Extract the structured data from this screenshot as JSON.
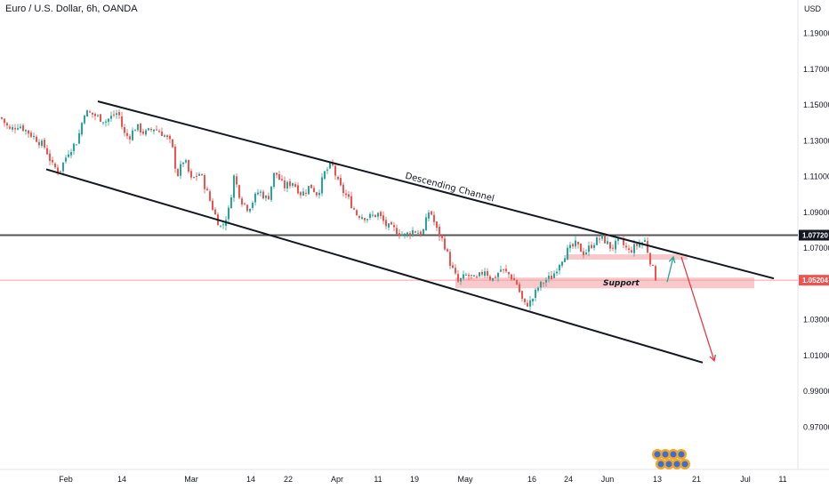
{
  "header": {
    "title": "Euro / U.S. Dollar, 6h, OANDA",
    "currency": "USD"
  },
  "colors": {
    "up": "#26a69a",
    "down": "#ef5350",
    "line": "#131722",
    "resistance": "#545454",
    "zone": "#f7c9cb",
    "price_line": "#f7a0a4",
    "arrow_up": "#26a69a",
    "arrow_down": "#e03c4a",
    "badge_bg": "#f5a623",
    "badge_icon": "#3b6fd8"
  },
  "chart_data": {
    "type": "candlestick",
    "symbol": "EURUSD",
    "timeframe": "6h",
    "grid": false,
    "ylim": [
      0.955,
      1.205
    ],
    "y_ticks": [
      "1.19000",
      "1.17000",
      "1.15000",
      "1.13000",
      "1.11000",
      "1.09000",
      "1.07000",
      "1.03000",
      "1.01000",
      "0.99000",
      "0.97000"
    ],
    "x_ticks": [
      "Feb",
      "14",
      "Mar",
      "14",
      "22",
      "Apr",
      "11",
      "19",
      "May",
      "16",
      "24",
      "Jun",
      "13",
      "21",
      "Jul",
      "11"
    ],
    "close_path": [
      {
        "x": 0.0,
        "y": 1.143
      },
      {
        "x": 10,
        "y": 1.136
      },
      {
        "x": 20,
        "y": 1.139
      },
      {
        "x": 30,
        "y": 1.135
      },
      {
        "x": 40,
        "y": 1.131
      },
      {
        "x": 50,
        "y": 1.126
      },
      {
        "x": 58,
        "y": 1.116
      },
      {
        "x": 66,
        "y": 1.113
      },
      {
        "x": 76,
        "y": 1.124
      },
      {
        "x": 86,
        "y": 1.13
      },
      {
        "x": 94,
        "y": 1.146
      },
      {
        "x": 102,
        "y": 1.145
      },
      {
        "x": 110,
        "y": 1.143
      },
      {
        "x": 118,
        "y": 1.141
      },
      {
        "x": 126,
        "y": 1.144
      },
      {
        "x": 132,
        "y": 1.146
      },
      {
        "x": 138,
        "y": 1.134
      },
      {
        "x": 144,
        "y": 1.132
      },
      {
        "x": 152,
        "y": 1.138
      },
      {
        "x": 162,
        "y": 1.134
      },
      {
        "x": 172,
        "y": 1.137
      },
      {
        "x": 182,
        "y": 1.134
      },
      {
        "x": 192,
        "y": 1.128
      },
      {
        "x": 198,
        "y": 1.11
      },
      {
        "x": 206,
        "y": 1.12
      },
      {
        "x": 214,
        "y": 1.108
      },
      {
        "x": 224,
        "y": 1.112
      },
      {
        "x": 234,
        "y": 1.098
      },
      {
        "x": 242,
        "y": 1.087
      },
      {
        "x": 248,
        "y": 1.081
      },
      {
        "x": 256,
        "y": 1.091
      },
      {
        "x": 262,
        "y": 1.11
      },
      {
        "x": 270,
        "y": 1.097
      },
      {
        "x": 278,
        "y": 1.092
      },
      {
        "x": 290,
        "y": 1.102
      },
      {
        "x": 300,
        "y": 1.097
      },
      {
        "x": 308,
        "y": 1.113
      },
      {
        "x": 318,
        "y": 1.104
      },
      {
        "x": 328,
        "y": 1.107
      },
      {
        "x": 338,
        "y": 1.1
      },
      {
        "x": 348,
        "y": 1.105
      },
      {
        "x": 356,
        "y": 1.1
      },
      {
        "x": 364,
        "y": 1.112
      },
      {
        "x": 372,
        "y": 1.117
      },
      {
        "x": 380,
        "y": 1.105
      },
      {
        "x": 390,
        "y": 1.098
      },
      {
        "x": 400,
        "y": 1.089
      },
      {
        "x": 412,
        "y": 1.087
      },
      {
        "x": 424,
        "y": 1.089
      },
      {
        "x": 434,
        "y": 1.082
      },
      {
        "x": 444,
        "y": 1.08
      },
      {
        "x": 454,
        "y": 1.077
      },
      {
        "x": 464,
        "y": 1.08
      },
      {
        "x": 474,
        "y": 1.078
      },
      {
        "x": 482,
        "y": 1.092
      },
      {
        "x": 490,
        "y": 1.08
      },
      {
        "x": 498,
        "y": 1.073
      },
      {
        "x": 506,
        "y": 1.06
      },
      {
        "x": 514,
        "y": 1.051
      },
      {
        "x": 524,
        "y": 1.055
      },
      {
        "x": 534,
        "y": 1.052
      },
      {
        "x": 544,
        "y": 1.058
      },
      {
        "x": 552,
        "y": 1.052
      },
      {
        "x": 562,
        "y": 1.058
      },
      {
        "x": 572,
        "y": 1.055
      },
      {
        "x": 580,
        "y": 1.05
      },
      {
        "x": 588,
        "y": 1.038
      },
      {
        "x": 596,
        "y": 1.04
      },
      {
        "x": 604,
        "y": 1.048
      },
      {
        "x": 612,
        "y": 1.052
      },
      {
        "x": 620,
        "y": 1.054
      },
      {
        "x": 628,
        "y": 1.062
      },
      {
        "x": 636,
        "y": 1.068
      },
      {
        "x": 646,
        "y": 1.072
      },
      {
        "x": 656,
        "y": 1.067
      },
      {
        "x": 666,
        "y": 1.073
      },
      {
        "x": 676,
        "y": 1.076
      },
      {
        "x": 686,
        "y": 1.07
      },
      {
        "x": 696,
        "y": 1.074
      },
      {
        "x": 706,
        "y": 1.068
      },
      {
        "x": 716,
        "y": 1.072
      },
      {
        "x": 724,
        "y": 1.074
      },
      {
        "x": 730,
        "y": 1.063
      },
      {
        "x": 737,
        "y": 1.052
      }
    ],
    "annotations": {
      "channel_label": "Descending Channel",
      "support_label": "Support",
      "resistance_level": 1.0772,
      "resistance_label": "1.07720",
      "current_price": 1.05204,
      "current_label": "1.05204",
      "channel_upper": {
        "from": {
          "x": 110,
          "y": 1.152
        },
        "to": {
          "x": 870,
          "y": 1.053
        }
      },
      "channel_lower": {
        "from": {
          "x": 52,
          "y": 1.114
        },
        "to": {
          "x": 790,
          "y": 1.006
        }
      },
      "support_zone": {
        "x0": 512,
        "x1": 848,
        "y_low": 1.0475,
        "y_high": 1.0535
      },
      "pullback_zone": {
        "x0": 636,
        "x1": 773,
        "y_low": 1.0635,
        "y_high": 1.0665
      },
      "arrow_up": {
        "from": {
          "x": 750,
          "y": 1.051
        },
        "to": {
          "x": 757,
          "y": 1.065
        }
      },
      "arrow_down": {
        "from": {
          "x": 766,
          "y": 1.065
        },
        "to": {
          "x": 803,
          "y": 1.007
        }
      }
    }
  }
}
